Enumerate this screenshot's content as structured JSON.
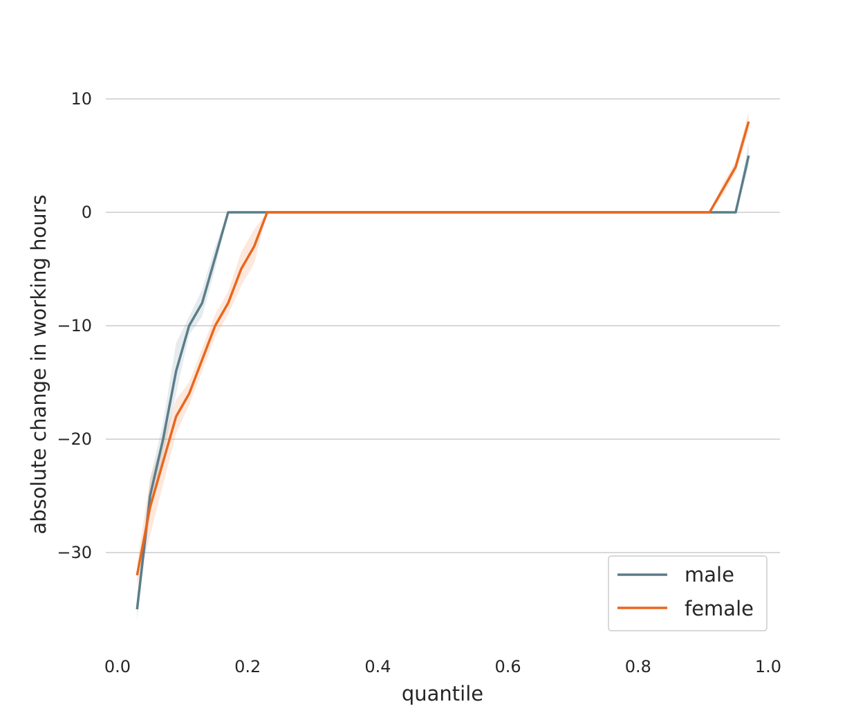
{
  "chart_data": {
    "type": "line",
    "title": "",
    "xlabel": "quantile",
    "ylabel": "absolute change in working hours",
    "xlim": [
      0.0,
      1.0
    ],
    "ylim": [
      -37.5,
      13.5
    ],
    "xticks": [
      0.0,
      0.2,
      0.4,
      0.6,
      0.8,
      1.0
    ],
    "xtick_labels": [
      "0.0",
      "0.2",
      "0.4",
      "0.6",
      "0.8",
      "1.0"
    ],
    "yticks": [
      10,
      0,
      -10,
      -20,
      -30
    ],
    "ytick_labels": [
      "10",
      "0",
      "−10",
      "−20",
      "−30"
    ],
    "grid": "horizontal",
    "legend_position": "lower-right",
    "x": [
      0.03,
      0.05,
      0.07,
      0.09,
      0.11,
      0.13,
      0.15,
      0.17,
      0.19,
      0.21,
      0.23,
      0.25,
      0.3,
      0.4,
      0.5,
      0.6,
      0.7,
      0.8,
      0.87,
      0.91,
      0.93,
      0.95,
      0.97
    ],
    "series": [
      {
        "name": "male",
        "color": "#5a7d8a",
        "values": [
          -35,
          -25,
          -20,
          -14,
          -10,
          -8,
          -4,
          0,
          0,
          0,
          0,
          0,
          0,
          0,
          0,
          0,
          0,
          0,
          0,
          0,
          0,
          0,
          5
        ],
        "ci_low": [
          -36,
          -26.5,
          -21.5,
          -16,
          -10.8,
          -9.2,
          -5,
          0,
          0,
          0,
          0,
          0,
          0,
          0,
          0,
          0,
          0,
          0,
          0,
          0,
          0,
          0,
          4
        ],
        "ci_high": [
          -34,
          -23.5,
          -18.5,
          -11.5,
          -9.2,
          -6.8,
          -3,
          0,
          0,
          0,
          0,
          0,
          0,
          0,
          0,
          0,
          0,
          0,
          0,
          0,
          0,
          0,
          6.2
        ]
      },
      {
        "name": "female",
        "color": "#e8671e",
        "values": [
          -32,
          -26,
          -22,
          -18,
          -16,
          -13,
          -10,
          -8,
          -5,
          -3,
          0,
          0,
          0,
          0,
          0,
          0,
          0,
          0,
          0,
          0,
          2,
          4,
          8
        ],
        "ci_low": [
          -33,
          -28.5,
          -24,
          -19.5,
          -17,
          -14,
          -11,
          -9,
          -6.5,
          -4.5,
          0,
          0,
          0,
          0,
          0,
          0,
          0,
          0,
          0,
          0,
          1.5,
          3.5,
          7.2
        ],
        "ci_high": [
          -31,
          -23.5,
          -20,
          -16.5,
          -15,
          -12,
          -9,
          -7,
          -3.5,
          -1.5,
          0,
          0,
          0,
          0,
          0,
          0,
          0,
          0,
          0,
          0,
          2.5,
          4.5,
          8.9
        ]
      }
    ]
  }
}
